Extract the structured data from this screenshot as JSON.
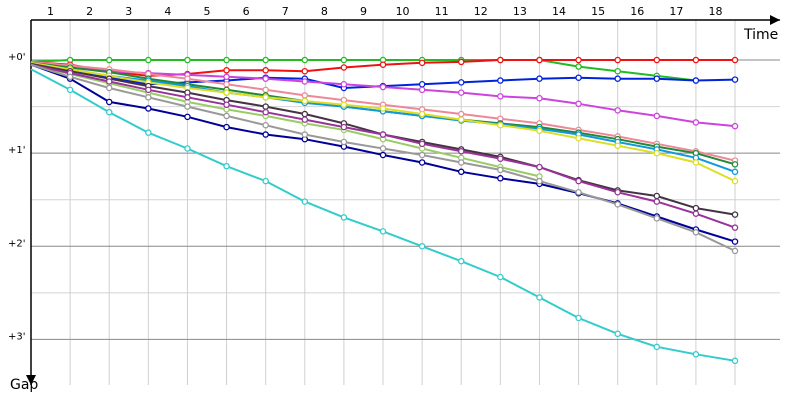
{
  "chart_data": {
    "type": "line",
    "x_label": "Time",
    "y_label": "Gap",
    "x": [
      0,
      1,
      2,
      3,
      4,
      5,
      6,
      7,
      8,
      9,
      10,
      11,
      12,
      13,
      14,
      15,
      16,
      17,
      18
    ],
    "xlim": [
      0,
      19.15
    ],
    "xticks": [
      1,
      2,
      3,
      4,
      5,
      6,
      7,
      8,
      9,
      10,
      11,
      12,
      13,
      14,
      15,
      16,
      17,
      18
    ],
    "ylim": [
      -0.43,
      3.49
    ],
    "yticks": [
      {
        "value": 0,
        "label": "+0'"
      },
      {
        "value": 1,
        "label": "+1'"
      },
      {
        "value": 2,
        "label": "+2'"
      },
      {
        "value": 3,
        "label": "+3'"
      }
    ],
    "yminor": [
      0.5,
      1.5,
      2.5
    ],
    "y_reversed": true,
    "grid": true,
    "series": [
      {
        "color": "#22bb22",
        "values": [
          0.02,
          0,
          0,
          0,
          0,
          0,
          0,
          0,
          0,
          0,
          0,
          0,
          0,
          0,
          0.07,
          0.12,
          0.17,
          0.22,
          null
        ]
      },
      {
        "color": "#ee1111",
        "values": [
          0.02,
          0.05,
          0.12,
          0.17,
          0.15,
          0.11,
          0.11,
          0.12,
          0.08,
          0.05,
          0.03,
          0.02,
          0,
          0,
          0,
          0,
          0,
          0,
          0
        ]
      },
      {
        "color": "#0022dd",
        "values": [
          0.03,
          0.11,
          0.19,
          0.26,
          0.24,
          0.22,
          0.19,
          0.2,
          0.3,
          0.28,
          0.26,
          0.24,
          0.22,
          0.2,
          0.19,
          0.2,
          0.2,
          0.22,
          0.21
        ]
      },
      {
        "color": "#cc44dd",
        "values": [
          0.02,
          0.08,
          0.12,
          0.14,
          0.16,
          0.18,
          0.2,
          0.23,
          0.26,
          0.29,
          0.32,
          0.35,
          0.39,
          0.41,
          0.47,
          0.54,
          0.6,
          0.67,
          0.71
        ]
      },
      {
        "color": "#ee8899",
        "values": [
          0.02,
          0.06,
          0.1,
          0.15,
          0.2,
          0.26,
          0.32,
          0.38,
          0.43,
          0.48,
          0.53,
          0.58,
          0.63,
          0.68,
          0.75,
          0.82,
          0.9,
          0.98,
          1.08
        ]
      },
      {
        "color": "#228833",
        "values": [
          0.03,
          0.08,
          0.13,
          0.2,
          0.26,
          0.32,
          0.38,
          0.44,
          0.5,
          0.55,
          0.6,
          0.64,
          0.68,
          0.72,
          0.78,
          0.85,
          0.93,
          1.0,
          1.12
        ]
      },
      {
        "color": "#1199dd",
        "values": [
          0.03,
          0.1,
          0.17,
          0.22,
          0.28,
          0.35,
          0.4,
          0.46,
          0.5,
          0.55,
          0.6,
          0.65,
          0.69,
          0.74,
          0.8,
          0.88,
          0.96,
          1.05,
          1.2
        ]
      },
      {
        "color": "#dddd22",
        "values": [
          0.03,
          0.1,
          0.17,
          0.24,
          0.3,
          0.35,
          0.4,
          0.44,
          0.48,
          0.52,
          0.58,
          0.64,
          0.7,
          0.76,
          0.84,
          0.92,
          1.0,
          1.1,
          1.3
        ]
      },
      {
        "color": "#99cc66",
        "values": [
          0.05,
          0.15,
          0.25,
          0.35,
          0.45,
          0.53,
          0.6,
          0.68,
          0.75,
          0.85,
          0.95,
          1.05,
          1.15,
          1.25,
          null,
          null,
          null,
          null,
          null
        ]
      },
      {
        "color": "#443344",
        "values": [
          0.04,
          0.12,
          0.2,
          0.28,
          0.35,
          0.43,
          0.5,
          0.58,
          0.68,
          0.8,
          0.88,
          0.96,
          1.04,
          1.15,
          1.29,
          1.4,
          1.46,
          1.59,
          1.66
        ]
      },
      {
        "color": "#993399",
        "values": [
          0.05,
          0.14,
          0.23,
          0.32,
          0.4,
          0.48,
          0.56,
          0.64,
          0.72,
          0.8,
          0.9,
          0.98,
          1.06,
          1.15,
          1.3,
          1.42,
          1.52,
          1.65,
          1.8
        ]
      },
      {
        "color": "#000099",
        "values": [
          0.05,
          0.2,
          0.45,
          0.52,
          0.61,
          0.72,
          0.8,
          0.85,
          0.93,
          1.02,
          1.1,
          1.2,
          1.27,
          1.33,
          1.43,
          1.54,
          1.68,
          1.82,
          1.95
        ]
      },
      {
        "color": "#999999",
        "values": [
          0.05,
          0.18,
          0.3,
          0.4,
          0.5,
          0.6,
          0.7,
          0.8,
          0.88,
          0.95,
          1.02,
          1.1,
          1.18,
          1.3,
          1.42,
          1.55,
          1.7,
          1.85,
          2.05
        ]
      },
      {
        "color": "#33cccc",
        "values": [
          0.1,
          0.32,
          0.56,
          0.78,
          0.95,
          1.14,
          1.3,
          1.52,
          1.69,
          1.84,
          2.0,
          2.16,
          2.33,
          2.55,
          2.77,
          2.94,
          3.08,
          3.16,
          3.23
        ]
      }
    ]
  }
}
